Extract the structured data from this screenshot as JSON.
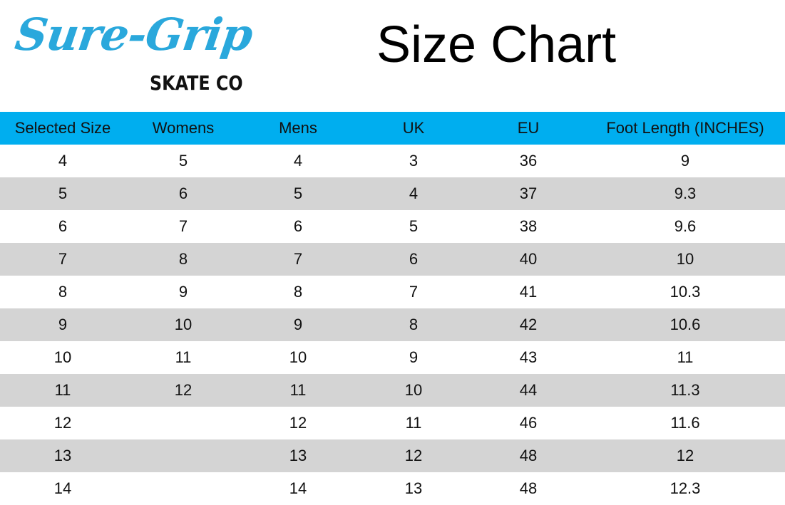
{
  "header": {
    "logo": "Sure-Grip",
    "logo_sub": "SKATE CO",
    "title": "Size Chart"
  },
  "table": {
    "columns": [
      "Selected Size",
      "Womens",
      "Mens",
      "UK",
      "EU",
      "Foot Length (INCHES)"
    ],
    "rows": [
      [
        4,
        5,
        4,
        3,
        36,
        9
      ],
      [
        5,
        6,
        5,
        4,
        37,
        9.3
      ],
      [
        6,
        7,
        6,
        5,
        38,
        9.6
      ],
      [
        7,
        8,
        7,
        6,
        40,
        10
      ],
      [
        8,
        9,
        8,
        7,
        41,
        10.3
      ],
      [
        9,
        10,
        9,
        8,
        42,
        10.6
      ],
      [
        10,
        11,
        10,
        9,
        43,
        11
      ],
      [
        11,
        12,
        11,
        10,
        44,
        11.3
      ],
      [
        12,
        null,
        12,
        11,
        46,
        11.6
      ],
      [
        13,
        null,
        13,
        12,
        48,
        12
      ],
      [
        14,
        null,
        14,
        13,
        48,
        12.3
      ]
    ]
  }
}
